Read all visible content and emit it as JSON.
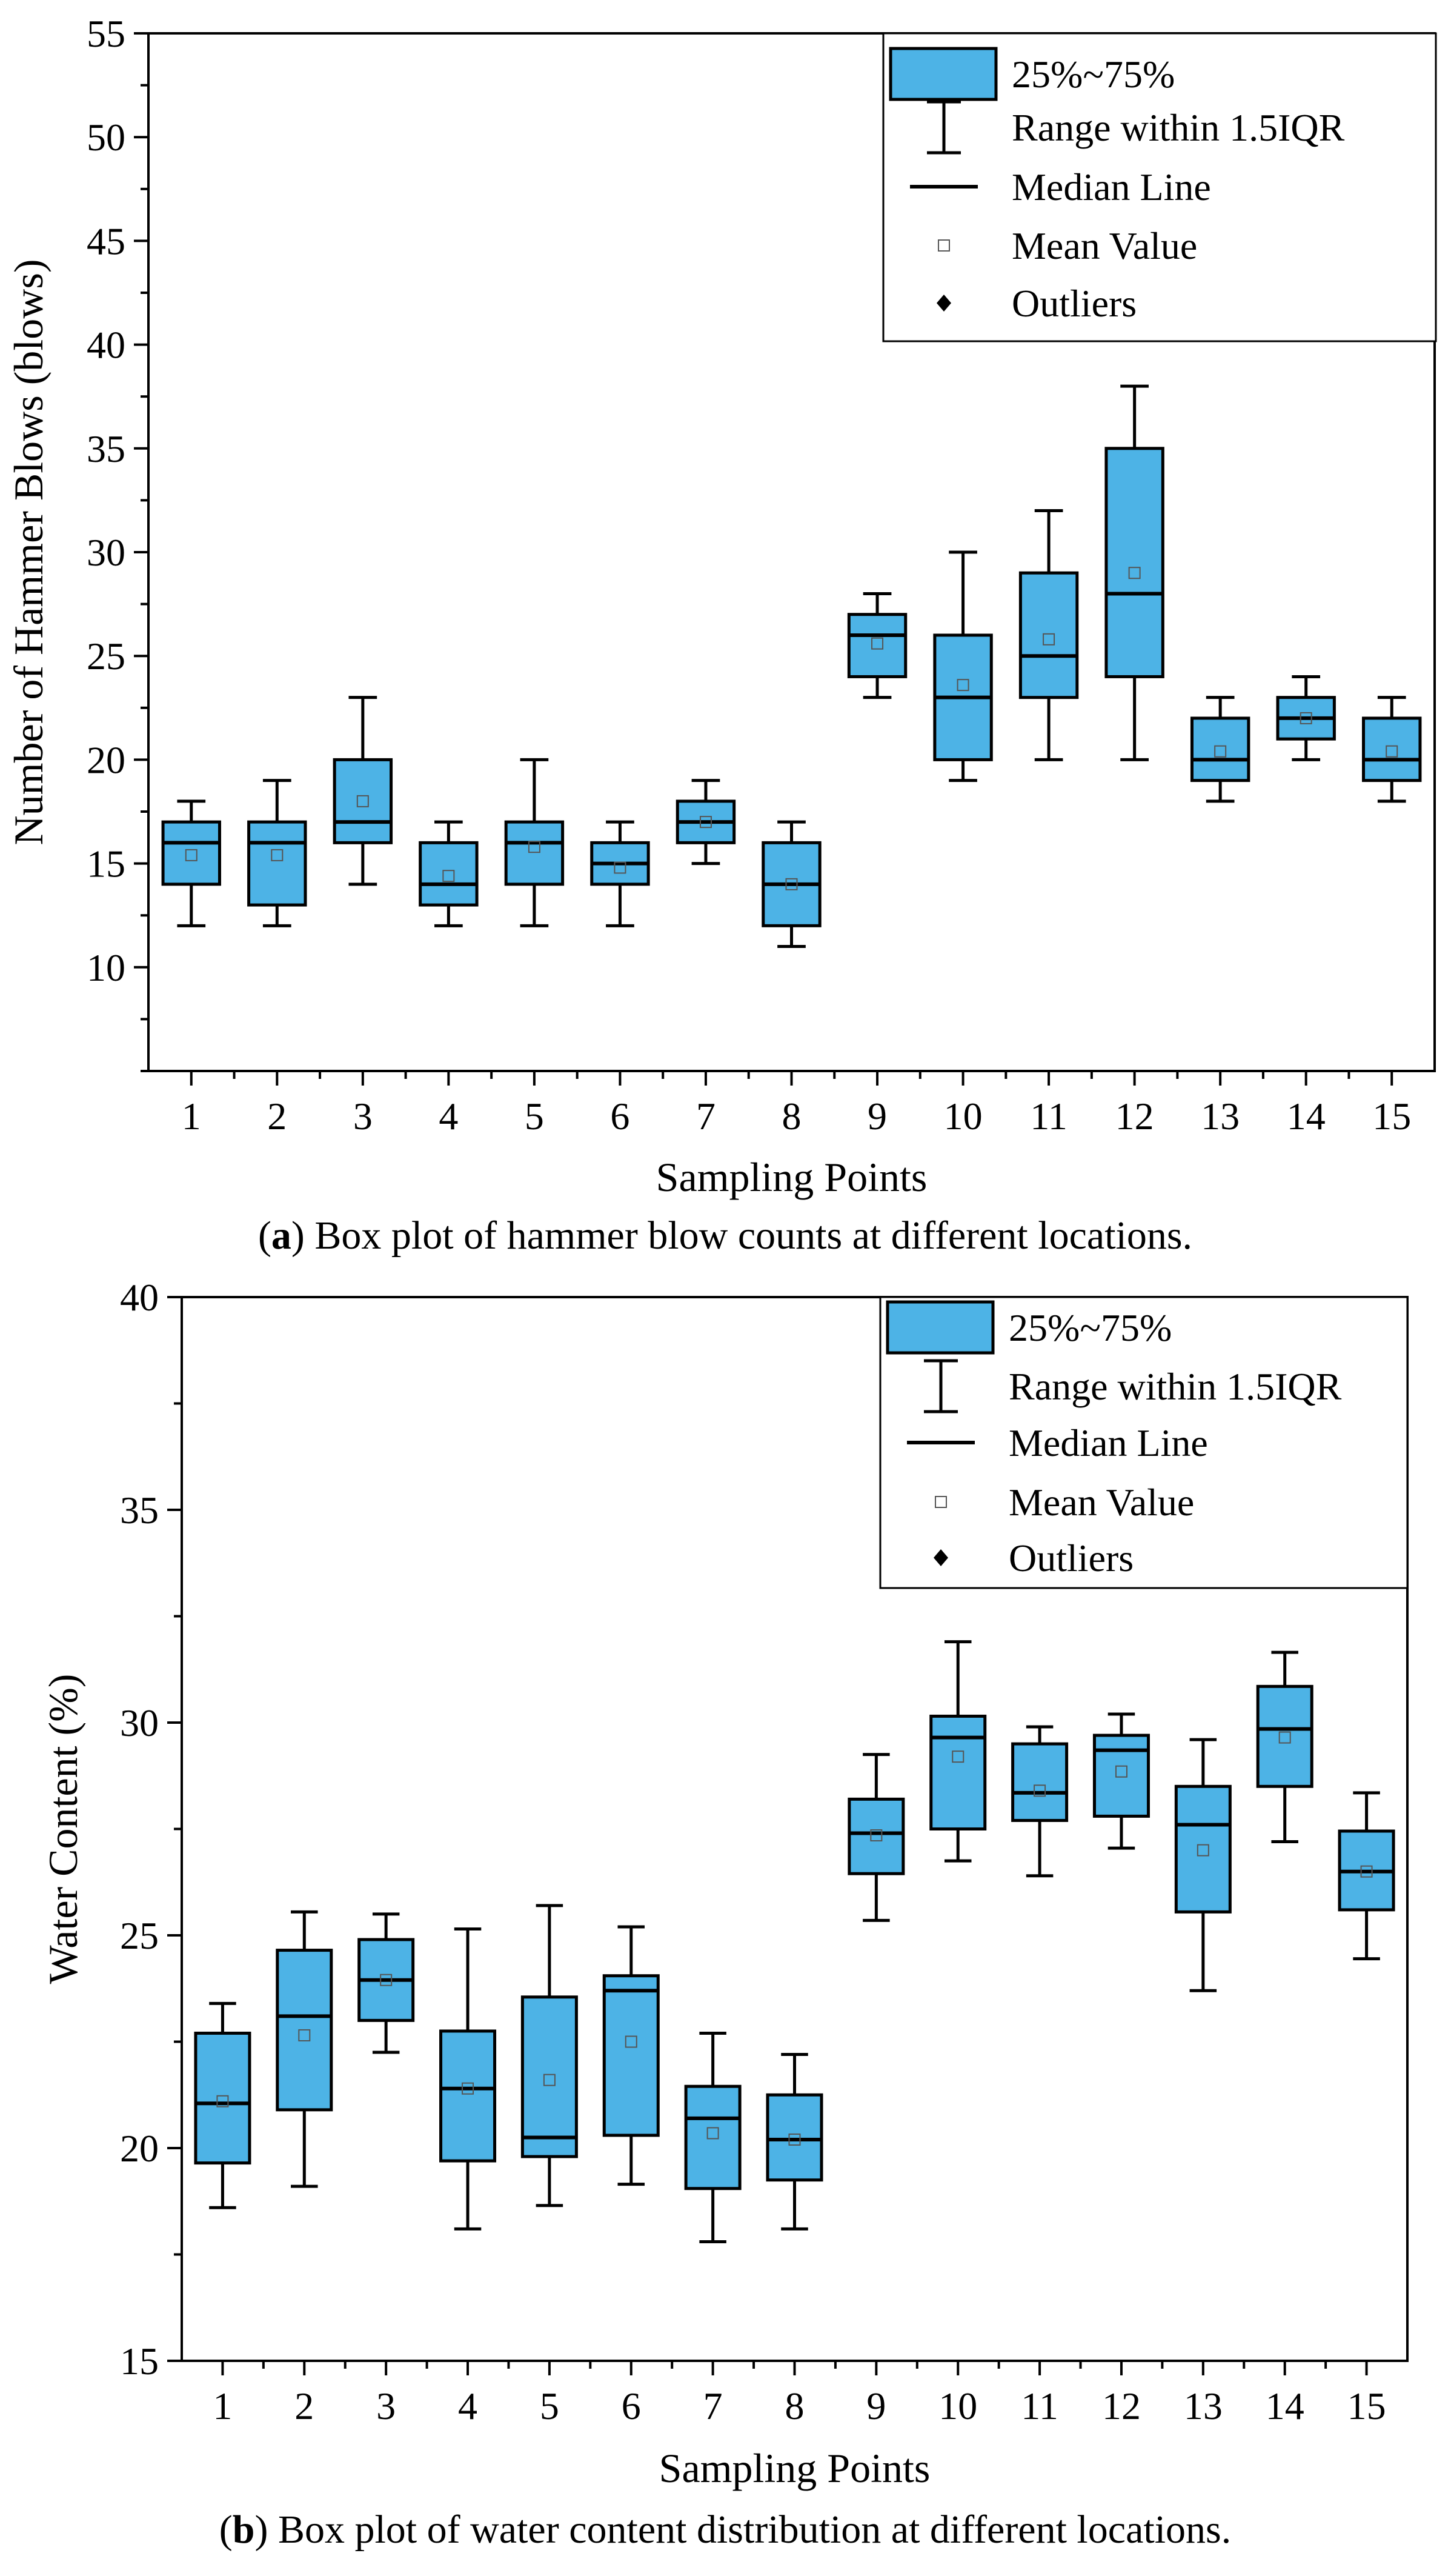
{
  "colors": {
    "box_fill": "#4db3e6",
    "stroke": "#000000",
    "mean_marker": "#555555",
    "background": "#ffffff"
  },
  "chart_data": [
    {
      "type": "box",
      "caption_prefix": "(",
      "caption_label": "a",
      "caption_text": ") Box plot of hammer blow counts at different locations.",
      "xlabel": "Sampling Points",
      "ylabel": "Number of Hammer Blows (blows)",
      "ylim": [
        5,
        55
      ],
      "yticks": [
        10,
        15,
        20,
        25,
        30,
        35,
        40,
        45,
        50,
        55
      ],
      "ytick_labels": [
        "10",
        "15",
        "20",
        "25",
        "30",
        "35",
        "40",
        "45",
        "50",
        "55"
      ],
      "categories": [
        "1",
        "2",
        "3",
        "4",
        "5",
        "6",
        "7",
        "8",
        "9",
        "10",
        "11",
        "12",
        "13",
        "14",
        "15"
      ],
      "boxes": [
        {
          "min": 12,
          "q1": 14,
          "median": 16,
          "q3": 17,
          "max": 18,
          "mean": 15.4
        },
        {
          "min": 12,
          "q1": 13,
          "median": 16,
          "q3": 17,
          "max": 19,
          "mean": 15.4
        },
        {
          "min": 14,
          "q1": 16,
          "median": 17,
          "q3": 20,
          "max": 23,
          "mean": 18.0
        },
        {
          "min": 12,
          "q1": 13,
          "median": 14,
          "q3": 16,
          "max": 17,
          "mean": 14.4
        },
        {
          "min": 12,
          "q1": 14,
          "median": 16,
          "q3": 17,
          "max": 20,
          "mean": 15.8
        },
        {
          "min": 12,
          "q1": 14,
          "median": 15,
          "q3": 16,
          "max": 17,
          "mean": 14.8
        },
        {
          "min": 15,
          "q1": 16,
          "median": 17,
          "q3": 18,
          "max": 19,
          "mean": 17.0
        },
        {
          "min": 11,
          "q1": 12,
          "median": 14,
          "q3": 16,
          "max": 17,
          "mean": 14.0
        },
        {
          "min": 23,
          "q1": 24,
          "median": 26,
          "q3": 27,
          "max": 28,
          "mean": 25.6
        },
        {
          "min": 19,
          "q1": 20,
          "median": 23,
          "q3": 26,
          "max": 30,
          "mean": 23.6
        },
        {
          "min": 20,
          "q1": 23,
          "median": 25,
          "q3": 29,
          "max": 32,
          "mean": 25.8
        },
        {
          "min": 20,
          "q1": 24,
          "median": 28,
          "q3": 35,
          "max": 38,
          "mean": 29.0
        },
        {
          "min": 18,
          "q1": 19,
          "median": 20,
          "q3": 22,
          "max": 23,
          "mean": 20.4
        },
        {
          "min": 20,
          "q1": 21,
          "median": 22,
          "q3": 23,
          "max": 24,
          "mean": 22.0
        },
        {
          "min": 18,
          "q1": 19,
          "median": 20,
          "q3": 22,
          "max": 23,
          "mean": 20.4
        }
      ],
      "legend": {
        "position": "top-right",
        "items": [
          {
            "symbol": "box",
            "label": "25%~75%"
          },
          {
            "symbol": "whisker",
            "label": "Range within 1.5IQR"
          },
          {
            "symbol": "median",
            "label": "Median Line"
          },
          {
            "symbol": "mean",
            "label": "Mean Value"
          },
          {
            "symbol": "outlier",
            "label": "Outliers"
          }
        ]
      }
    },
    {
      "type": "box",
      "caption_prefix": "(",
      "caption_label": "b",
      "caption_text": ") Box plot of water content distribution at different locations.",
      "xlabel": "Sampling Points",
      "ylabel": "Water Content (%)",
      "ylim": [
        15,
        40
      ],
      "yticks": [
        15,
        20,
        25,
        30,
        35,
        40
      ],
      "ytick_labels": [
        "15",
        "20",
        "25",
        "30",
        "35",
        "40"
      ],
      "categories": [
        "1",
        "2",
        "3",
        "4",
        "5",
        "6",
        "7",
        "8",
        "9",
        "10",
        "11",
        "12",
        "13",
        "14",
        "15"
      ],
      "boxes": [
        {
          "min": 18.6,
          "q1": 19.65,
          "median": 21.05,
          "q3": 22.7,
          "max": 23.4,
          "mean": 21.1
        },
        {
          "min": 19.1,
          "q1": 20.9,
          "median": 23.1,
          "q3": 24.65,
          "max": 25.55,
          "mean": 22.65
        },
        {
          "min": 22.25,
          "q1": 23.0,
          "median": 23.95,
          "q3": 24.9,
          "max": 25.5,
          "mean": 23.95
        },
        {
          "min": 18.1,
          "q1": 19.7,
          "median": 21.4,
          "q3": 22.75,
          "max": 25.15,
          "mean": 21.4
        },
        {
          "min": 18.65,
          "q1": 19.8,
          "median": 20.25,
          "q3": 23.55,
          "max": 25.7,
          "mean": 21.6
        },
        {
          "min": 19.15,
          "q1": 20.3,
          "median": 23.7,
          "q3": 24.05,
          "max": 25.2,
          "mean": 22.5
        },
        {
          "min": 17.8,
          "q1": 19.05,
          "median": 20.7,
          "q3": 21.45,
          "max": 22.7,
          "mean": 20.35
        },
        {
          "min": 18.1,
          "q1": 19.25,
          "median": 20.2,
          "q3": 21.25,
          "max": 22.2,
          "mean": 20.2
        },
        {
          "min": 25.35,
          "q1": 26.45,
          "median": 27.4,
          "q3": 28.2,
          "max": 29.25,
          "mean": 27.35
        },
        {
          "min": 26.75,
          "q1": 27.5,
          "median": 29.65,
          "q3": 30.15,
          "max": 31.9,
          "mean": 29.2
        },
        {
          "min": 26.4,
          "q1": 27.7,
          "median": 28.35,
          "q3": 29.5,
          "max": 29.9,
          "mean": 28.4
        },
        {
          "min": 27.05,
          "q1": 27.8,
          "median": 29.35,
          "q3": 29.7,
          "max": 30.2,
          "mean": 28.85
        },
        {
          "min": 23.7,
          "q1": 25.55,
          "median": 27.6,
          "q3": 28.5,
          "max": 29.6,
          "mean": 27.0
        },
        {
          "min": 27.2,
          "q1": 28.5,
          "median": 29.85,
          "q3": 30.85,
          "max": 31.65,
          "mean": 29.65
        },
        {
          "min": 24.45,
          "q1": 25.6,
          "median": 26.5,
          "q3": 27.45,
          "max": 28.35,
          "mean": 26.5
        }
      ],
      "legend": {
        "position": "top-right",
        "items": [
          {
            "symbol": "box",
            "label": "25%~75%"
          },
          {
            "symbol": "whisker",
            "label": "Range within 1.5IQR"
          },
          {
            "symbol": "median",
            "label": "Median Line"
          },
          {
            "symbol": "mean",
            "label": "Mean Value"
          },
          {
            "symbol": "outlier",
            "label": "Outliers"
          }
        ]
      }
    }
  ]
}
